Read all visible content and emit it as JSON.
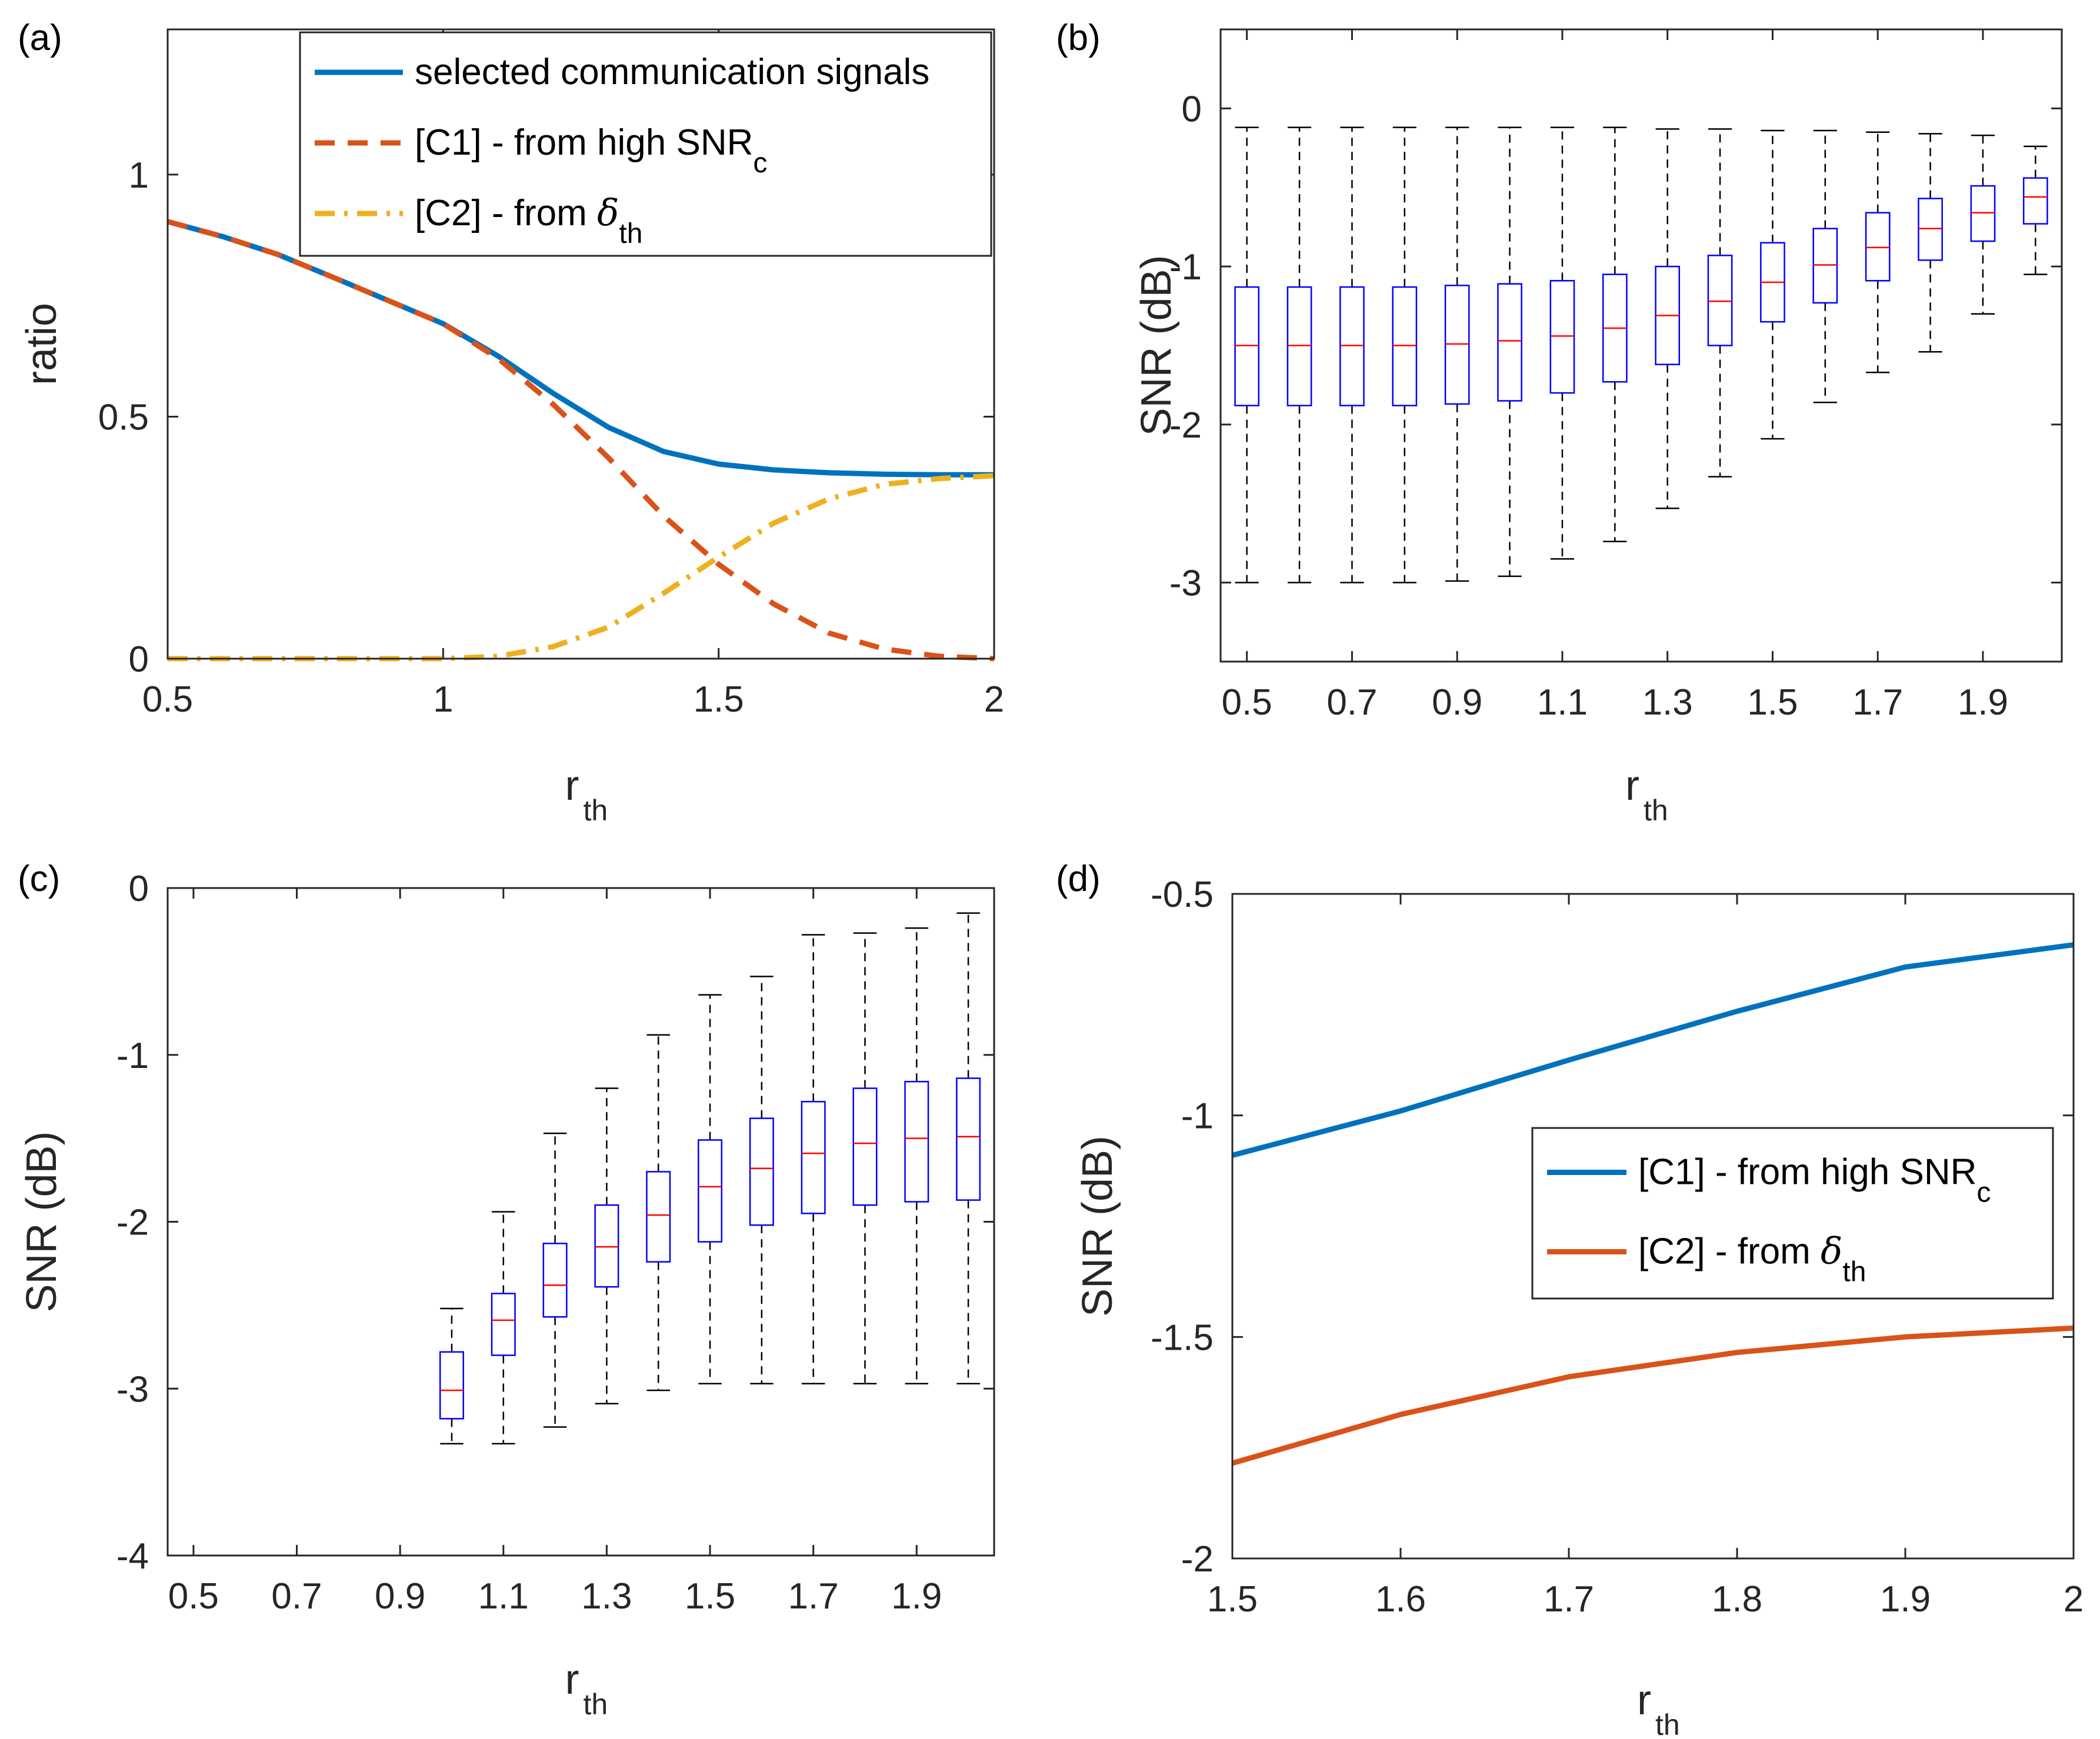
{
  "chart_data": [
    {
      "id": "a",
      "panel_label": "(a)",
      "type": "line",
      "xlabel": "r",
      "xlabel_sub": "th",
      "ylabel": "ratio",
      "xlim": [
        0.5,
        2
      ],
      "ylim": [
        0,
        1.3
      ],
      "xticks": [
        0.5,
        1,
        1.5,
        2
      ],
      "xtick_labels": [
        "0.5",
        "1",
        "1.5",
        "2"
      ],
      "yticks": [
        0,
        0.5,
        1
      ],
      "ytick_labels": [
        "0",
        "0.5",
        "1"
      ],
      "legend_position": "top-right",
      "series": [
        {
          "name": "selected communication signals",
          "color": "#0072BD",
          "dash": "solid",
          "x": [
            0.5,
            0.6,
            0.7,
            0.8,
            0.9,
            1.0,
            1.1,
            1.2,
            1.3,
            1.4,
            1.5,
            1.6,
            1.7,
            1.8,
            1.9,
            2.0
          ],
          "y": [
            0.903,
            0.872,
            0.835,
            0.788,
            0.74,
            0.692,
            0.625,
            0.548,
            0.478,
            0.428,
            0.402,
            0.39,
            0.384,
            0.381,
            0.38,
            0.38
          ]
        },
        {
          "name": "[C1] - from high SNR",
          "name_sub": "c",
          "color": "#D95319",
          "dash": "dashed",
          "x": [
            0.5,
            0.6,
            0.7,
            0.8,
            0.9,
            1.0,
            1.1,
            1.2,
            1.3,
            1.4,
            1.5,
            1.6,
            1.7,
            1.8,
            1.9,
            2.0
          ],
          "y": [
            0.903,
            0.872,
            0.835,
            0.788,
            0.74,
            0.692,
            0.62,
            0.525,
            0.415,
            0.295,
            0.195,
            0.113,
            0.053,
            0.02,
            0.005,
            0.0
          ]
        },
        {
          "name": "[C2] - from ",
          "name_greek": "δ",
          "name_sub": "th",
          "color": "#EDB120",
          "dash": "dashdot",
          "x": [
            0.5,
            0.6,
            0.7,
            0.8,
            0.9,
            1.0,
            1.1,
            1.2,
            1.3,
            1.4,
            1.5,
            1.6,
            1.7,
            1.8,
            1.9,
            2.0
          ],
          "y": [
            0.0,
            0.0,
            0.0,
            0.0,
            0.0,
            0.0,
            0.005,
            0.025,
            0.065,
            0.135,
            0.21,
            0.28,
            0.33,
            0.36,
            0.372,
            0.378
          ]
        }
      ]
    },
    {
      "id": "b",
      "panel_label": "(b)",
      "type": "box",
      "xlabel": "r",
      "xlabel_sub": "th",
      "ylabel": "SNR (dB)",
      "xlim": [
        0.45,
        2.05
      ],
      "ylim": [
        -3.5,
        0.5
      ],
      "xticks": [
        0.5,
        0.7,
        0.9,
        1.1,
        1.3,
        1.5,
        1.7,
        1.9
      ],
      "xtick_labels": [
        "0.5",
        "0.7",
        "0.9",
        "1.1",
        "1.3",
        "1.5",
        "1.7",
        "1.9"
      ],
      "yticks": [
        -3,
        -2,
        -1,
        0
      ],
      "ytick_labels": [
        "-3",
        "-2",
        "-1",
        "0"
      ],
      "box_color": "#0000FF",
      "median_color": "#FF0000",
      "whisker_color": "#000000",
      "boxes": [
        {
          "x": 0.5,
          "min": -3.0,
          "q1": -1.88,
          "median": -1.5,
          "q3": -1.13,
          "max": -0.12
        },
        {
          "x": 0.6,
          "min": -3.0,
          "q1": -1.88,
          "median": -1.5,
          "q3": -1.13,
          "max": -0.12
        },
        {
          "x": 0.7,
          "min": -3.0,
          "q1": -1.88,
          "median": -1.5,
          "q3": -1.13,
          "max": -0.12
        },
        {
          "x": 0.8,
          "min": -3.0,
          "q1": -1.88,
          "median": -1.5,
          "q3": -1.13,
          "max": -0.12
        },
        {
          "x": 0.9,
          "min": -2.99,
          "q1": -1.87,
          "median": -1.49,
          "q3": -1.12,
          "max": -0.12
        },
        {
          "x": 1.0,
          "min": -2.96,
          "q1": -1.85,
          "median": -1.47,
          "q3": -1.11,
          "max": -0.12
        },
        {
          "x": 1.1,
          "min": -2.85,
          "q1": -1.8,
          "median": -1.44,
          "q3": -1.09,
          "max": -0.12
        },
        {
          "x": 1.2,
          "min": -2.74,
          "q1": -1.73,
          "median": -1.39,
          "q3": -1.05,
          "max": -0.12
        },
        {
          "x": 1.3,
          "min": -2.53,
          "q1": -1.62,
          "median": -1.31,
          "q3": -1.0,
          "max": -0.13
        },
        {
          "x": 1.4,
          "min": -2.33,
          "q1": -1.5,
          "median": -1.22,
          "q3": -0.93,
          "max": -0.13
        },
        {
          "x": 1.5,
          "min": -2.09,
          "q1": -1.35,
          "median": -1.1,
          "q3": -0.85,
          "max": -0.14
        },
        {
          "x": 1.6,
          "min": -1.86,
          "q1": -1.23,
          "median": -0.99,
          "q3": -0.76,
          "max": -0.14
        },
        {
          "x": 1.7,
          "min": -1.67,
          "q1": -1.09,
          "median": -0.88,
          "q3": -0.66,
          "max": -0.15
        },
        {
          "x": 1.8,
          "min": -1.54,
          "q1": -0.96,
          "median": -0.76,
          "q3": -0.57,
          "max": -0.16
        },
        {
          "x": 1.9,
          "min": -1.3,
          "q1": -0.84,
          "median": -0.66,
          "q3": -0.49,
          "max": -0.17
        },
        {
          "x": 2.0,
          "min": -1.05,
          "q1": -0.73,
          "median": -0.56,
          "q3": -0.44,
          "max": -0.24
        }
      ]
    },
    {
      "id": "c",
      "panel_label": "(c)",
      "type": "box",
      "xlabel": "r",
      "xlabel_sub": "th",
      "ylabel": "SNR (dB)",
      "xlim": [
        0.45,
        2.05
      ],
      "ylim": [
        -4,
        0
      ],
      "xticks": [
        0.5,
        0.7,
        0.9,
        1.1,
        1.3,
        1.5,
        1.7,
        1.9
      ],
      "xtick_labels": [
        "0.5",
        "0.7",
        "0.9",
        "1.1",
        "1.3",
        "1.5",
        "1.7",
        "1.9"
      ],
      "yticks": [
        -4,
        -3,
        -2,
        -1,
        0
      ],
      "ytick_labels": [
        "-4",
        "-3",
        "-2",
        "-1",
        "0"
      ],
      "box_color": "#0000FF",
      "median_color": "#FF0000",
      "whisker_color": "#000000",
      "boxes": [
        {
          "x": 1.0,
          "min": -3.33,
          "q1": -3.18,
          "median": -3.01,
          "q3": -2.78,
          "max": -2.52
        },
        {
          "x": 1.1,
          "min": -3.33,
          "q1": -2.8,
          "median": -2.59,
          "q3": -2.43,
          "max": -1.94
        },
        {
          "x": 1.2,
          "min": -3.23,
          "q1": -2.57,
          "median": -2.38,
          "q3": -2.13,
          "max": -1.47
        },
        {
          "x": 1.3,
          "min": -3.09,
          "q1": -2.39,
          "median": -2.15,
          "q3": -1.9,
          "max": -1.2
        },
        {
          "x": 1.4,
          "min": -3.01,
          "q1": -2.24,
          "median": -1.96,
          "q3": -1.7,
          "max": -0.88
        },
        {
          "x": 1.5,
          "min": -2.97,
          "q1": -2.12,
          "median": -1.79,
          "q3": -1.51,
          "max": -0.64
        },
        {
          "x": 1.6,
          "min": -2.97,
          "q1": -2.02,
          "median": -1.68,
          "q3": -1.38,
          "max": -0.53
        },
        {
          "x": 1.7,
          "min": -2.97,
          "q1": -1.95,
          "median": -1.59,
          "q3": -1.28,
          "max": -0.28
        },
        {
          "x": 1.8,
          "min": -2.97,
          "q1": -1.9,
          "median": -1.53,
          "q3": -1.2,
          "max": -0.27
        },
        {
          "x": 1.9,
          "min": -2.97,
          "q1": -1.88,
          "median": -1.5,
          "q3": -1.16,
          "max": -0.24
        },
        {
          "x": 2.0,
          "min": -2.97,
          "q1": -1.87,
          "median": -1.49,
          "q3": -1.14,
          "max": -0.15
        }
      ]
    },
    {
      "id": "d",
      "panel_label": "(d)",
      "type": "line",
      "xlabel": "r",
      "xlabel_sub": "th",
      "ylabel": "SNR (dB)",
      "xlim": [
        1.5,
        2
      ],
      "ylim": [
        -2,
        -0.5
      ],
      "xticks": [
        1.5,
        1.6,
        1.7,
        1.8,
        1.9,
        2.0
      ],
      "xtick_labels": [
        "1.5",
        "1.6",
        "1.7",
        "1.8",
        "1.9",
        "2"
      ],
      "yticks": [
        -2,
        -1.5,
        -1,
        -0.5
      ],
      "ytick_labels": [
        "-2",
        "-1.5",
        "-1",
        "-0.5"
      ],
      "legend_position": "right",
      "series": [
        {
          "name": "[C1] - from high SNR",
          "name_sub": "c",
          "color": "#0072BD",
          "dash": "solid",
          "x": [
            1.5,
            1.6,
            1.7,
            1.8,
            1.9,
            2.0
          ],
          "y": [
            -1.09,
            -0.99,
            -0.875,
            -0.765,
            -0.665,
            -0.615
          ]
        },
        {
          "name": "[C2] - from ",
          "name_greek": "δ",
          "name_sub": "th",
          "color": "#D95319",
          "dash": "solid",
          "x": [
            1.5,
            1.6,
            1.7,
            1.8,
            1.9,
            2.0
          ],
          "y": [
            -1.785,
            -1.675,
            -1.59,
            -1.535,
            -1.5,
            -1.48
          ]
        }
      ]
    }
  ]
}
